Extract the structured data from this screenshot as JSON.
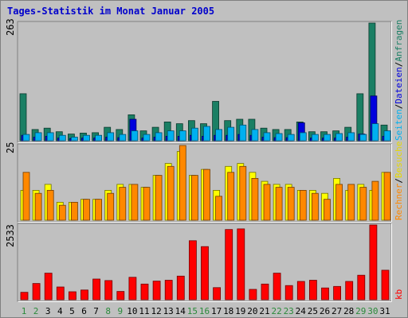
{
  "title": "Tages-Statistik im Monat Januar 2005",
  "colors": {
    "background": "#c0c0c0",
    "title": "#0000cc",
    "anfragen": "#1a7f64",
    "dateien": "#0000dd",
    "seiten": "#00b0f0",
    "besuche": "#ffff00",
    "rechner": "#ff8800",
    "kb": "#ff0000",
    "weekday_label": "#000000",
    "weekend_label": "#2a8a3a"
  },
  "legend": {
    "top": {
      "anfragen": "Anfragen",
      "dateien": "Dateien",
      "seiten": "Seiten",
      "sep": "/"
    },
    "middle": {
      "besuche": "Besuche",
      "rechner": "Rechner",
      "sep": "/"
    },
    "bottom": {
      "kb": "kb"
    }
  },
  "chart_data": [
    {
      "type": "bar",
      "panel": "top",
      "ymax_label": "263",
      "ylim": [
        0,
        263
      ],
      "categories": [
        "1",
        "2",
        "3",
        "4",
        "5",
        "6",
        "7",
        "8",
        "9",
        "10",
        "11",
        "12",
        "13",
        "14",
        "15",
        "16",
        "17",
        "18",
        "19",
        "20",
        "21",
        "22",
        "23",
        "24",
        "25",
        "26",
        "27",
        "28",
        "29",
        "30",
        "31"
      ],
      "weekend_days": [
        1,
        2,
        8,
        9,
        15,
        16,
        22,
        23,
        29,
        30
      ],
      "series": [
        {
          "name": "Anfragen",
          "values": [
            105,
            25,
            28,
            20,
            15,
            17,
            18,
            30,
            25,
            58,
            22,
            30,
            42,
            38,
            45,
            38,
            88,
            45,
            48,
            48,
            28,
            25,
            25,
            42,
            20,
            20,
            22,
            30,
            105,
            263,
            35
          ]
        },
        {
          "name": "Dateien",
          "values": [
            12,
            8,
            10,
            6,
            5,
            6,
            6,
            8,
            7,
            48,
            6,
            8,
            10,
            10,
            12,
            10,
            12,
            12,
            14,
            12,
            8,
            7,
            7,
            40,
            6,
            6,
            6,
            8,
            15,
            100,
            10
          ]
        },
        {
          "name": "Seiten",
          "values": [
            14,
            18,
            18,
            12,
            8,
            12,
            12,
            18,
            14,
            22,
            14,
            18,
            22,
            22,
            28,
            32,
            25,
            30,
            35,
            25,
            18,
            16,
            14,
            18,
            14,
            14,
            16,
            18,
            14,
            38,
            22
          ]
        }
      ]
    },
    {
      "type": "bar",
      "panel": "middle",
      "ymax_label": "25",
      "ylim": [
        0,
        25
      ],
      "categories": [
        "1",
        "2",
        "3",
        "4",
        "5",
        "6",
        "7",
        "8",
        "9",
        "10",
        "11",
        "12",
        "13",
        "14",
        "15",
        "16",
        "17",
        "18",
        "19",
        "20",
        "21",
        "22",
        "23",
        "24",
        "25",
        "26",
        "27",
        "28",
        "29",
        "30",
        "31"
      ],
      "weekend_days": [
        1,
        2,
        8,
        9,
        15,
        16,
        22,
        23,
        29,
        30
      ],
      "series": [
        {
          "name": "Besuche",
          "values": [
            10,
            10,
            12,
            6,
            6,
            7,
            7,
            10,
            12,
            12,
            11,
            15,
            19,
            23,
            15,
            17,
            10,
            18,
            19,
            16,
            13,
            12,
            12,
            10,
            10,
            9,
            14,
            10,
            12,
            10,
            16
          ]
        },
        {
          "name": "Rechner",
          "values": [
            16,
            9,
            10,
            5,
            6,
            7,
            7,
            9,
            11,
            12,
            11,
            15,
            18,
            25,
            15,
            17,
            8,
            16,
            18,
            14,
            12,
            11,
            11,
            10,
            9,
            7,
            12,
            12,
            11,
            13,
            16
          ]
        }
      ]
    },
    {
      "type": "bar",
      "panel": "bottom",
      "ymax_label": "2533",
      "ylim": [
        0,
        2533
      ],
      "categories": [
        "1",
        "2",
        "3",
        "4",
        "5",
        "6",
        "7",
        "8",
        "9",
        "10",
        "11",
        "12",
        "13",
        "14",
        "15",
        "16",
        "17",
        "18",
        "19",
        "20",
        "21",
        "22",
        "23",
        "24",
        "25",
        "26",
        "27",
        "28",
        "29",
        "30",
        "31"
      ],
      "weekend_days": [
        1,
        2,
        8,
        9,
        15,
        16,
        22,
        23,
        29,
        30
      ],
      "series": [
        {
          "name": "kb",
          "values": [
            250,
            550,
            900,
            430,
            270,
            330,
            700,
            650,
            280,
            760,
            530,
            630,
            660,
            800,
            2000,
            1800,
            410,
            2380,
            2400,
            350,
            530,
            900,
            480,
            620,
            660,
            400,
            450,
            620,
            830,
            2533,
            1000
          ]
        }
      ]
    }
  ]
}
